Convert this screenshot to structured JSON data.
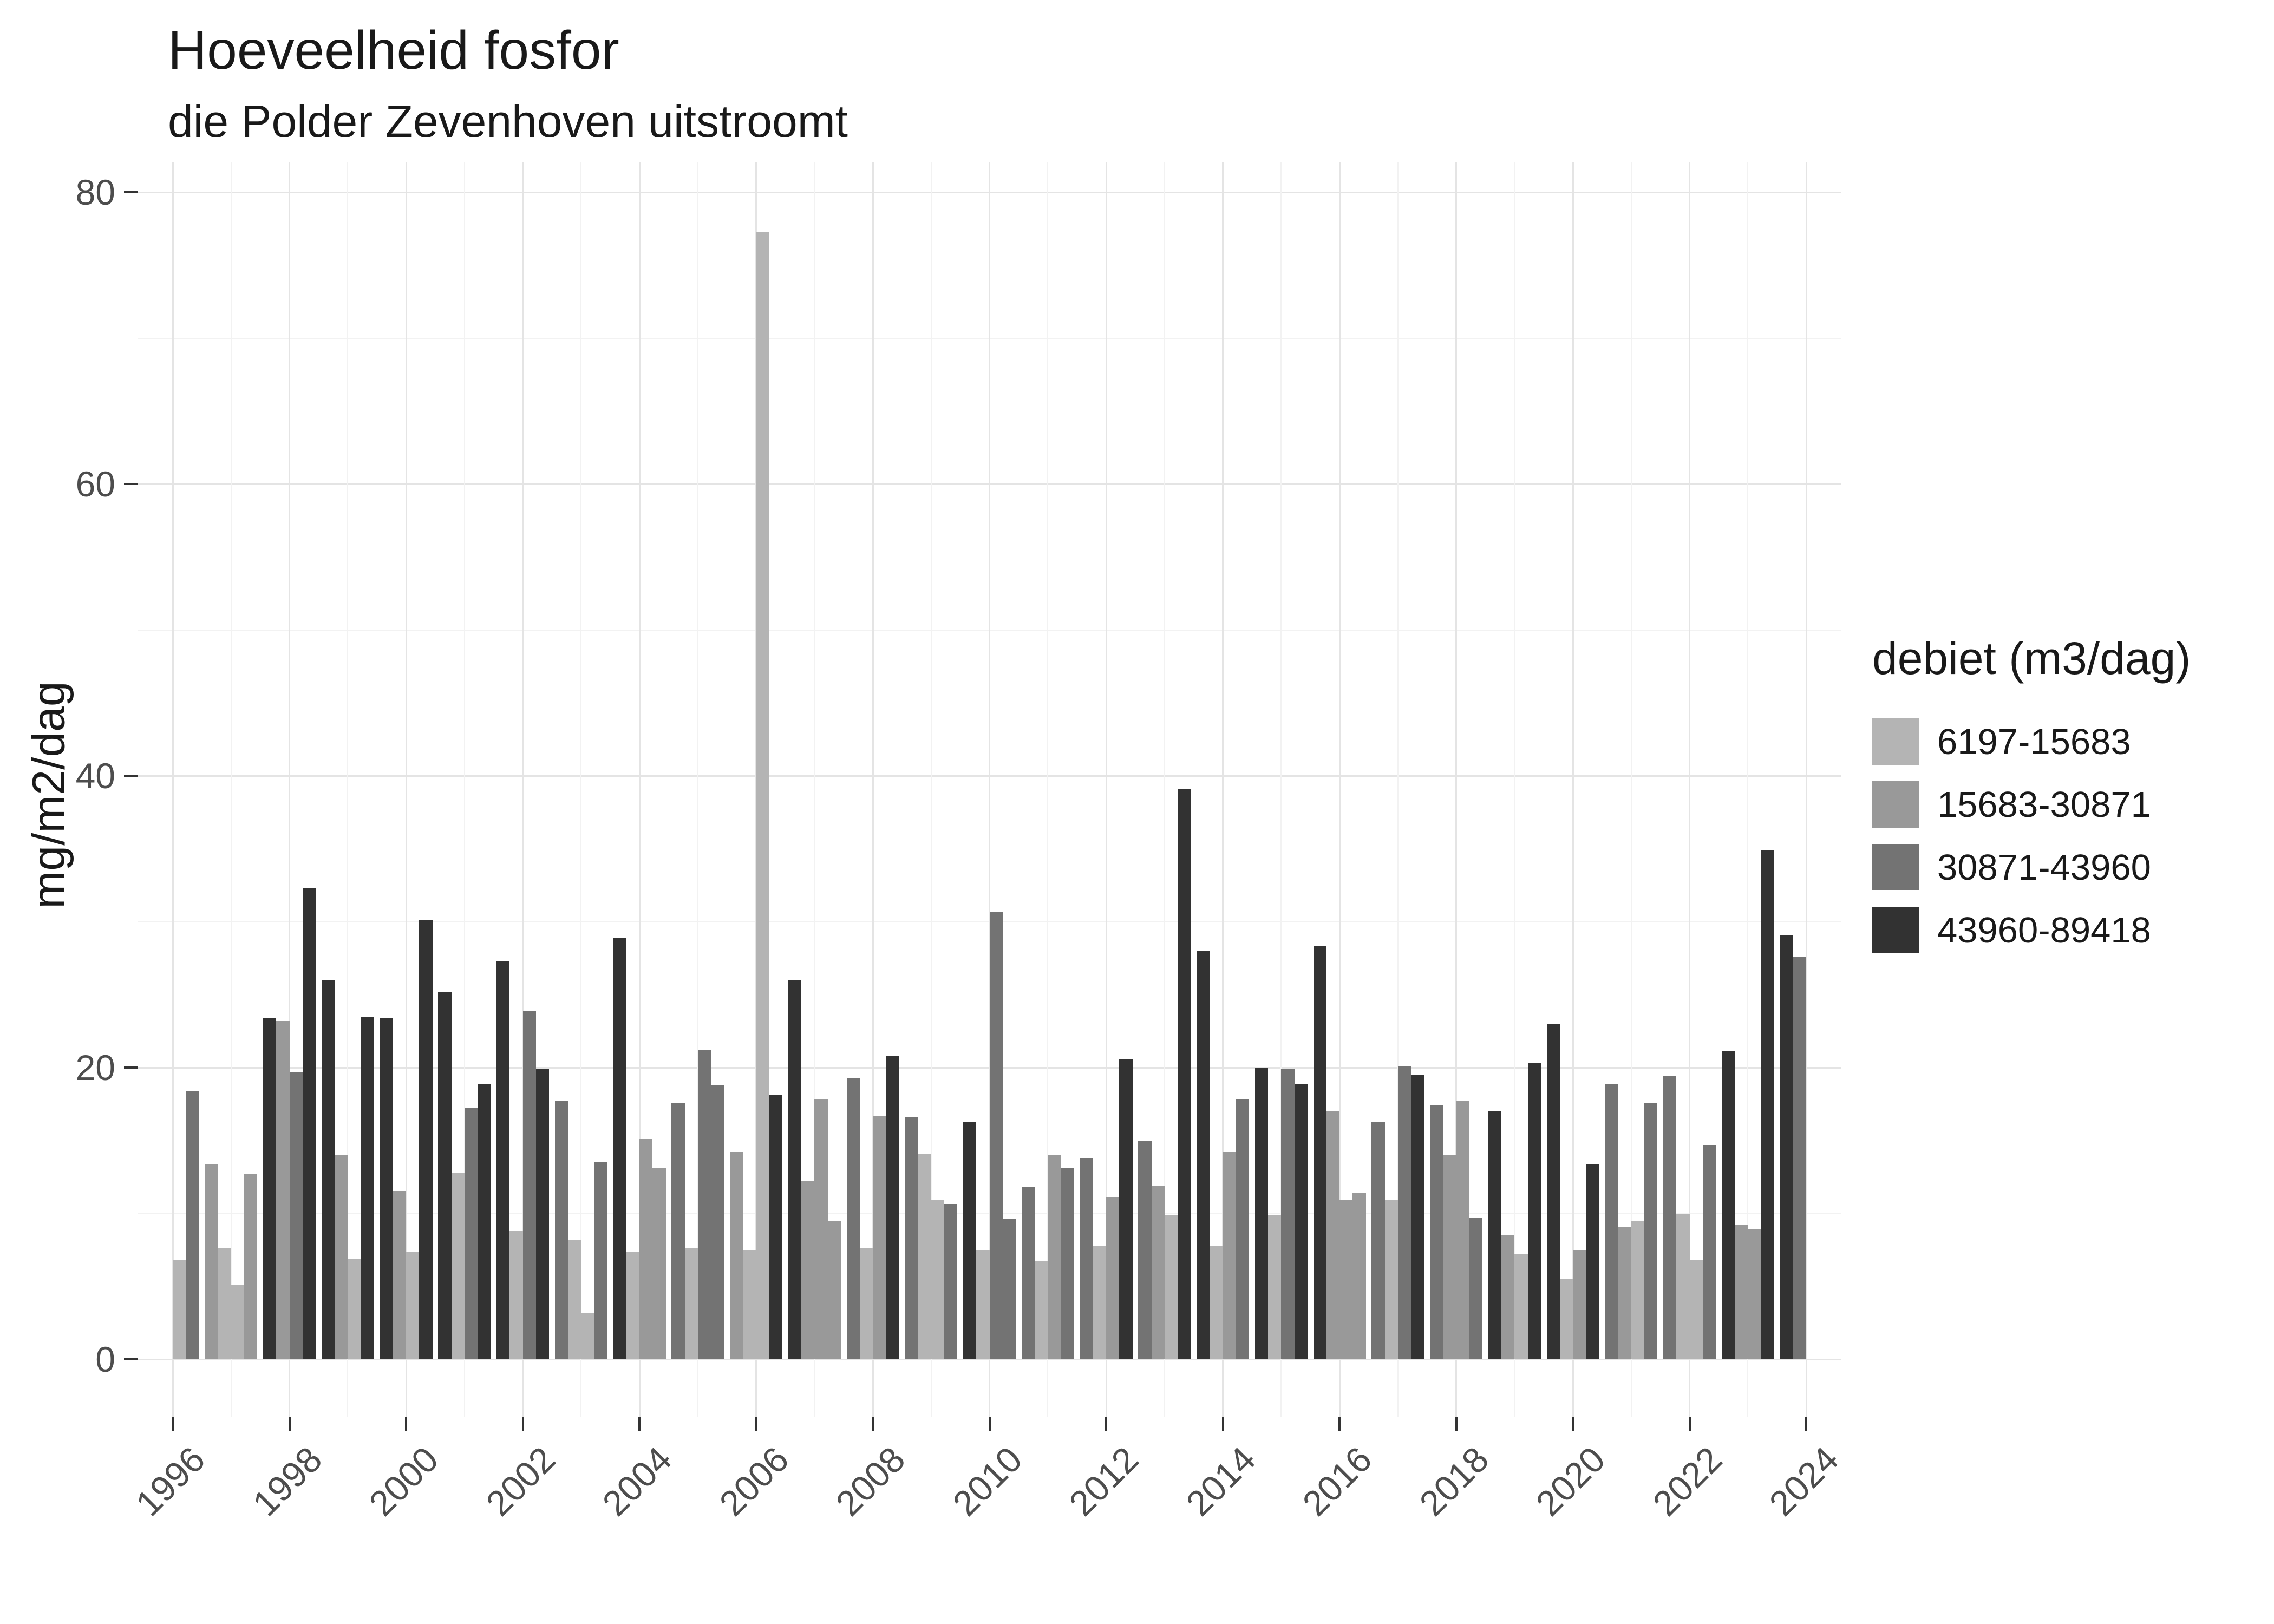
{
  "title": "Hoeveelheid fosfor",
  "subtitle": "die Polder Zevenhoven uitstroomt",
  "y_axis": {
    "label": "mg/m2/dag",
    "tick_labels": [
      "0",
      "20",
      "40",
      "60",
      "80"
    ]
  },
  "x_axis": {
    "tick_labels": [
      "1996",
      "1998",
      "2000",
      "2002",
      "2004",
      "2006",
      "2008",
      "2010",
      "2012",
      "2014",
      "2016",
      "2018",
      "2020",
      "2022",
      "2024"
    ]
  },
  "legend": {
    "title": "debiet (m3/dag)",
    "entries": [
      {
        "label": "6197-15683",
        "color": "#b4b4b4"
      },
      {
        "label": "15683-30871",
        "color": "#999999"
      },
      {
        "label": "30871-43960",
        "color": "#737373"
      },
      {
        "label": "43960-89418",
        "color": "#323232"
      }
    ]
  },
  "chart_data": {
    "type": "bar",
    "title": "Hoeveelheid fosfor",
    "subtitle": "die Polder Zevenhoven uitstroomt",
    "xlabel": "",
    "ylabel": "mg/m2/dag",
    "ylim": [
      0,
      80
    ],
    "y_major_ticks": [
      0,
      20,
      40,
      60,
      80
    ],
    "y_minor_gridlines": [
      10,
      30,
      50,
      70
    ],
    "x_range_years": [
      1996,
      2024
    ],
    "x_labeled_years": [
      1996,
      1998,
      2000,
      2002,
      2004,
      2006,
      2008,
      2010,
      2012,
      2014,
      2016,
      2018,
      2020,
      2022,
      2024
    ],
    "grid": true,
    "legend_position": "right",
    "group_structure": "4 bar slots per year (quarters); fill shade = debiet bin",
    "bins": [
      "6197-15683",
      "15683-30871",
      "30871-43960",
      "43960-89418"
    ],
    "bin_colors": [
      "#b4b4b4",
      "#999999",
      "#737373",
      "#323232"
    ],
    "years": [
      {
        "year": 1996,
        "bars": [
          {
            "pos": 3,
            "bin": 0,
            "v": 6.8
          },
          {
            "pos": 4,
            "bin": 2,
            "v": 18.4
          }
        ]
      },
      {
        "year": 1997,
        "bars": [
          {
            "pos": 1,
            "bin": 1,
            "v": 13.4
          },
          {
            "pos": 2,
            "bin": 0,
            "v": 7.6
          },
          {
            "pos": 3,
            "bin": 0,
            "v": 5.1
          },
          {
            "pos": 4,
            "bin": 1,
            "v": 12.7
          }
        ]
      },
      {
        "year": 1998,
        "bars": [
          {
            "pos": 1,
            "bin": 3,
            "v": 23.4
          },
          {
            "pos": 2,
            "bin": 1,
            "v": 23.2
          },
          {
            "pos": 3,
            "bin": 2,
            "v": 19.7
          },
          {
            "pos": 4,
            "bin": 3,
            "v": 32.3
          }
        ]
      },
      {
        "year": 1999,
        "bars": [
          {
            "pos": 1,
            "bin": 3,
            "v": 26.0
          },
          {
            "pos": 2,
            "bin": 1,
            "v": 14.0
          },
          {
            "pos": 3,
            "bin": 0,
            "v": 6.9
          },
          {
            "pos": 4,
            "bin": 3,
            "v": 23.5
          }
        ]
      },
      {
        "year": 2000,
        "bars": [
          {
            "pos": 1,
            "bin": 3,
            "v": 23.4
          },
          {
            "pos": 2,
            "bin": 1,
            "v": 11.5
          },
          {
            "pos": 3,
            "bin": 0,
            "v": 7.4
          },
          {
            "pos": 4,
            "bin": 3,
            "v": 30.1
          }
        ]
      },
      {
        "year": 2001,
        "bars": [
          {
            "pos": 1,
            "bin": 3,
            "v": 25.2
          },
          {
            "pos": 2,
            "bin": 0,
            "v": 12.8
          },
          {
            "pos": 3,
            "bin": 2,
            "v": 17.2
          },
          {
            "pos": 4,
            "bin": 3,
            "v": 18.9
          }
        ]
      },
      {
        "year": 2002,
        "bars": [
          {
            "pos": 1,
            "bin": 3,
            "v": 27.3
          },
          {
            "pos": 2,
            "bin": 0,
            "v": 8.8
          },
          {
            "pos": 3,
            "bin": 2,
            "v": 23.9
          },
          {
            "pos": 4,
            "bin": 3,
            "v": 19.9
          }
        ]
      },
      {
        "year": 2003,
        "bars": [
          {
            "pos": 1,
            "bin": 2,
            "v": 17.7
          },
          {
            "pos": 2,
            "bin": 0,
            "v": 8.2
          },
          {
            "pos": 3,
            "bin": 0,
            "v": 3.2
          },
          {
            "pos": 4,
            "bin": 2,
            "v": 13.5
          }
        ]
      },
      {
        "year": 2004,
        "bars": [
          {
            "pos": 1,
            "bin": 3,
            "v": 28.9
          },
          {
            "pos": 2,
            "bin": 0,
            "v": 7.4
          },
          {
            "pos": 3,
            "bin": 1,
            "v": 15.1
          },
          {
            "pos": 4,
            "bin": 1,
            "v": 13.1
          }
        ]
      },
      {
        "year": 2005,
        "bars": [
          {
            "pos": 1,
            "bin": 2,
            "v": 17.6
          },
          {
            "pos": 2,
            "bin": 0,
            "v": 7.6
          },
          {
            "pos": 3,
            "bin": 2,
            "v": 21.2
          },
          {
            "pos": 4,
            "bin": 2,
            "v": 18.8
          }
        ]
      },
      {
        "year": 2006,
        "bars": [
          {
            "pos": 1,
            "bin": 1,
            "v": 14.2
          },
          {
            "pos": 2,
            "bin": 0,
            "v": 7.5
          },
          {
            "pos": 3,
            "bin": 0,
            "v": 77.3
          },
          {
            "pos": 4,
            "bin": 3,
            "v": 18.1
          }
        ]
      },
      {
        "year": 2007,
        "bars": [
          {
            "pos": 1,
            "bin": 3,
            "v": 26.0
          },
          {
            "pos": 2,
            "bin": 1,
            "v": 12.2
          },
          {
            "pos": 3,
            "bin": 1,
            "v": 17.8
          },
          {
            "pos": 4,
            "bin": 1,
            "v": 9.5
          }
        ]
      },
      {
        "year": 2008,
        "bars": [
          {
            "pos": 1,
            "bin": 2,
            "v": 19.3
          },
          {
            "pos": 2,
            "bin": 0,
            "v": 7.6
          },
          {
            "pos": 3,
            "bin": 1,
            "v": 16.7
          },
          {
            "pos": 4,
            "bin": 3,
            "v": 20.8
          }
        ]
      },
      {
        "year": 2009,
        "bars": [
          {
            "pos": 1,
            "bin": 2,
            "v": 16.6
          },
          {
            "pos": 2,
            "bin": 0,
            "v": 14.1
          },
          {
            "pos": 3,
            "bin": 0,
            "v": 10.9
          },
          {
            "pos": 4,
            "bin": 2,
            "v": 10.6
          }
        ]
      },
      {
        "year": 2010,
        "bars": [
          {
            "pos": 1,
            "bin": 3,
            "v": 16.3
          },
          {
            "pos": 2,
            "bin": 0,
            "v": 7.5
          },
          {
            "pos": 3,
            "bin": 2,
            "v": 30.7
          },
          {
            "pos": 4,
            "bin": 2,
            "v": 9.6
          }
        ]
      },
      {
        "year": 2011,
        "bars": [
          {
            "pos": 1,
            "bin": 2,
            "v": 11.8
          },
          {
            "pos": 2,
            "bin": 0,
            "v": 6.7
          },
          {
            "pos": 3,
            "bin": 1,
            "v": 14.0
          },
          {
            "pos": 4,
            "bin": 2,
            "v": 13.1
          }
        ]
      },
      {
        "year": 2012,
        "bars": [
          {
            "pos": 1,
            "bin": 2,
            "v": 13.8
          },
          {
            "pos": 2,
            "bin": 0,
            "v": 7.8
          },
          {
            "pos": 3,
            "bin": 1,
            "v": 11.1
          },
          {
            "pos": 4,
            "bin": 3,
            "v": 20.6
          }
        ]
      },
      {
        "year": 2013,
        "bars": [
          {
            "pos": 1,
            "bin": 2,
            "v": 15.0
          },
          {
            "pos": 2,
            "bin": 1,
            "v": 11.9
          },
          {
            "pos": 3,
            "bin": 0,
            "v": 9.9
          },
          {
            "pos": 4,
            "bin": 3,
            "v": 39.1
          }
        ]
      },
      {
        "year": 2014,
        "bars": [
          {
            "pos": 1,
            "bin": 3,
            "v": 28.0
          },
          {
            "pos": 2,
            "bin": 0,
            "v": 7.8
          },
          {
            "pos": 3,
            "bin": 1,
            "v": 14.2
          },
          {
            "pos": 4,
            "bin": 2,
            "v": 17.8
          }
        ]
      },
      {
        "year": 2015,
        "bars": [
          {
            "pos": 1,
            "bin": 3,
            "v": 20.0
          },
          {
            "pos": 2,
            "bin": 0,
            "v": 9.9
          },
          {
            "pos": 3,
            "bin": 2,
            "v": 19.9
          },
          {
            "pos": 4,
            "bin": 3,
            "v": 18.9
          }
        ]
      },
      {
        "year": 2016,
        "bars": [
          {
            "pos": 1,
            "bin": 3,
            "v": 28.3
          },
          {
            "pos": 2,
            "bin": 1,
            "v": 17.0
          },
          {
            "pos": 3,
            "bin": 1,
            "v": 10.9
          },
          {
            "pos": 4,
            "bin": 1,
            "v": 11.4
          }
        ]
      },
      {
        "year": 2017,
        "bars": [
          {
            "pos": 1,
            "bin": 2,
            "v": 16.3
          },
          {
            "pos": 2,
            "bin": 0,
            "v": 10.9
          },
          {
            "pos": 3,
            "bin": 2,
            "v": 20.1
          },
          {
            "pos": 4,
            "bin": 3,
            "v": 19.5
          }
        ]
      },
      {
        "year": 2018,
        "bars": [
          {
            "pos": 1,
            "bin": 2,
            "v": 17.4
          },
          {
            "pos": 2,
            "bin": 1,
            "v": 14.0
          },
          {
            "pos": 3,
            "bin": 1,
            "v": 17.7
          },
          {
            "pos": 4,
            "bin": 2,
            "v": 9.7
          }
        ]
      },
      {
        "year": 2019,
        "bars": [
          {
            "pos": 1,
            "bin": 3,
            "v": 17.0
          },
          {
            "pos": 2,
            "bin": 1,
            "v": 8.5
          },
          {
            "pos": 3,
            "bin": 0,
            "v": 7.2
          },
          {
            "pos": 4,
            "bin": 3,
            "v": 20.3
          }
        ]
      },
      {
        "year": 2020,
        "bars": [
          {
            "pos": 1,
            "bin": 3,
            "v": 23.0
          },
          {
            "pos": 2,
            "bin": 0,
            "v": 5.5
          },
          {
            "pos": 3,
            "bin": 1,
            "v": 7.5
          },
          {
            "pos": 4,
            "bin": 3,
            "v": 13.4
          }
        ]
      },
      {
        "year": 2021,
        "bars": [
          {
            "pos": 1,
            "bin": 2,
            "v": 18.9
          },
          {
            "pos": 2,
            "bin": 1,
            "v": 9.1
          },
          {
            "pos": 3,
            "bin": 0,
            "v": 9.5
          },
          {
            "pos": 4,
            "bin": 2,
            "v": 17.6
          }
        ]
      },
      {
        "year": 2022,
        "bars": [
          {
            "pos": 1,
            "bin": 2,
            "v": 19.4
          },
          {
            "pos": 2,
            "bin": 0,
            "v": 10.0
          },
          {
            "pos": 3,
            "bin": 0,
            "v": 6.8
          },
          {
            "pos": 4,
            "bin": 2,
            "v": 14.7
          }
        ]
      },
      {
        "year": 2023,
        "bars": [
          {
            "pos": 1,
            "bin": 3,
            "v": 21.1
          },
          {
            "pos": 2,
            "bin": 1,
            "v": 9.2
          },
          {
            "pos": 3,
            "bin": 1,
            "v": 8.9
          },
          {
            "pos": 4,
            "bin": 3,
            "v": 34.9
          }
        ]
      },
      {
        "year": 2024,
        "bars": [
          {
            "pos": 1,
            "bin": 3,
            "v": 29.1
          },
          {
            "pos": 2,
            "bin": 2,
            "v": 27.6
          }
        ]
      }
    ]
  }
}
